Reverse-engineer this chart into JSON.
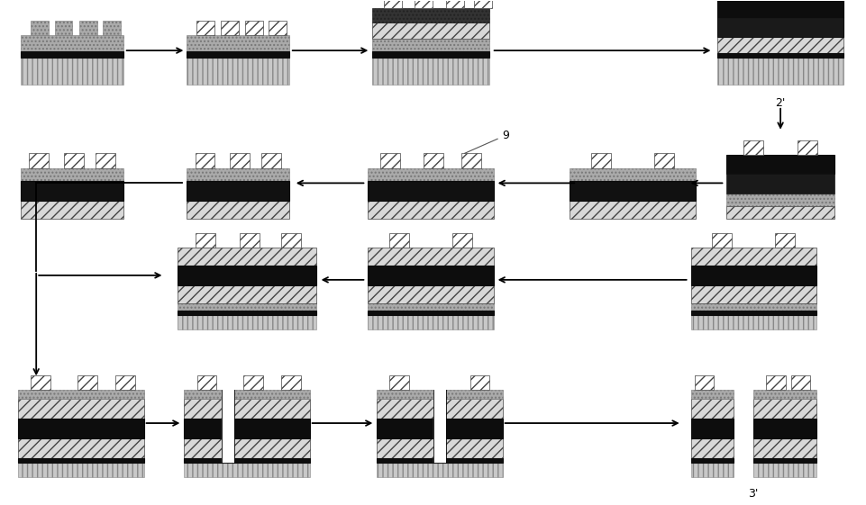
{
  "bg_color": "#ffffff",
  "label_2": "2'",
  "label_3": "3'",
  "label_9": "9",
  "col_vert": "#c8c8c8",
  "col_vert_e": "#888888",
  "col_black": "#0d0d0d",
  "col_diag": "#d8d8d8",
  "col_diag_e": "#444444",
  "col_gray": "#aaaaaa",
  "col_gray_e": "#777777",
  "col_dark_dot": "#555555",
  "col_white": "#ffffff"
}
